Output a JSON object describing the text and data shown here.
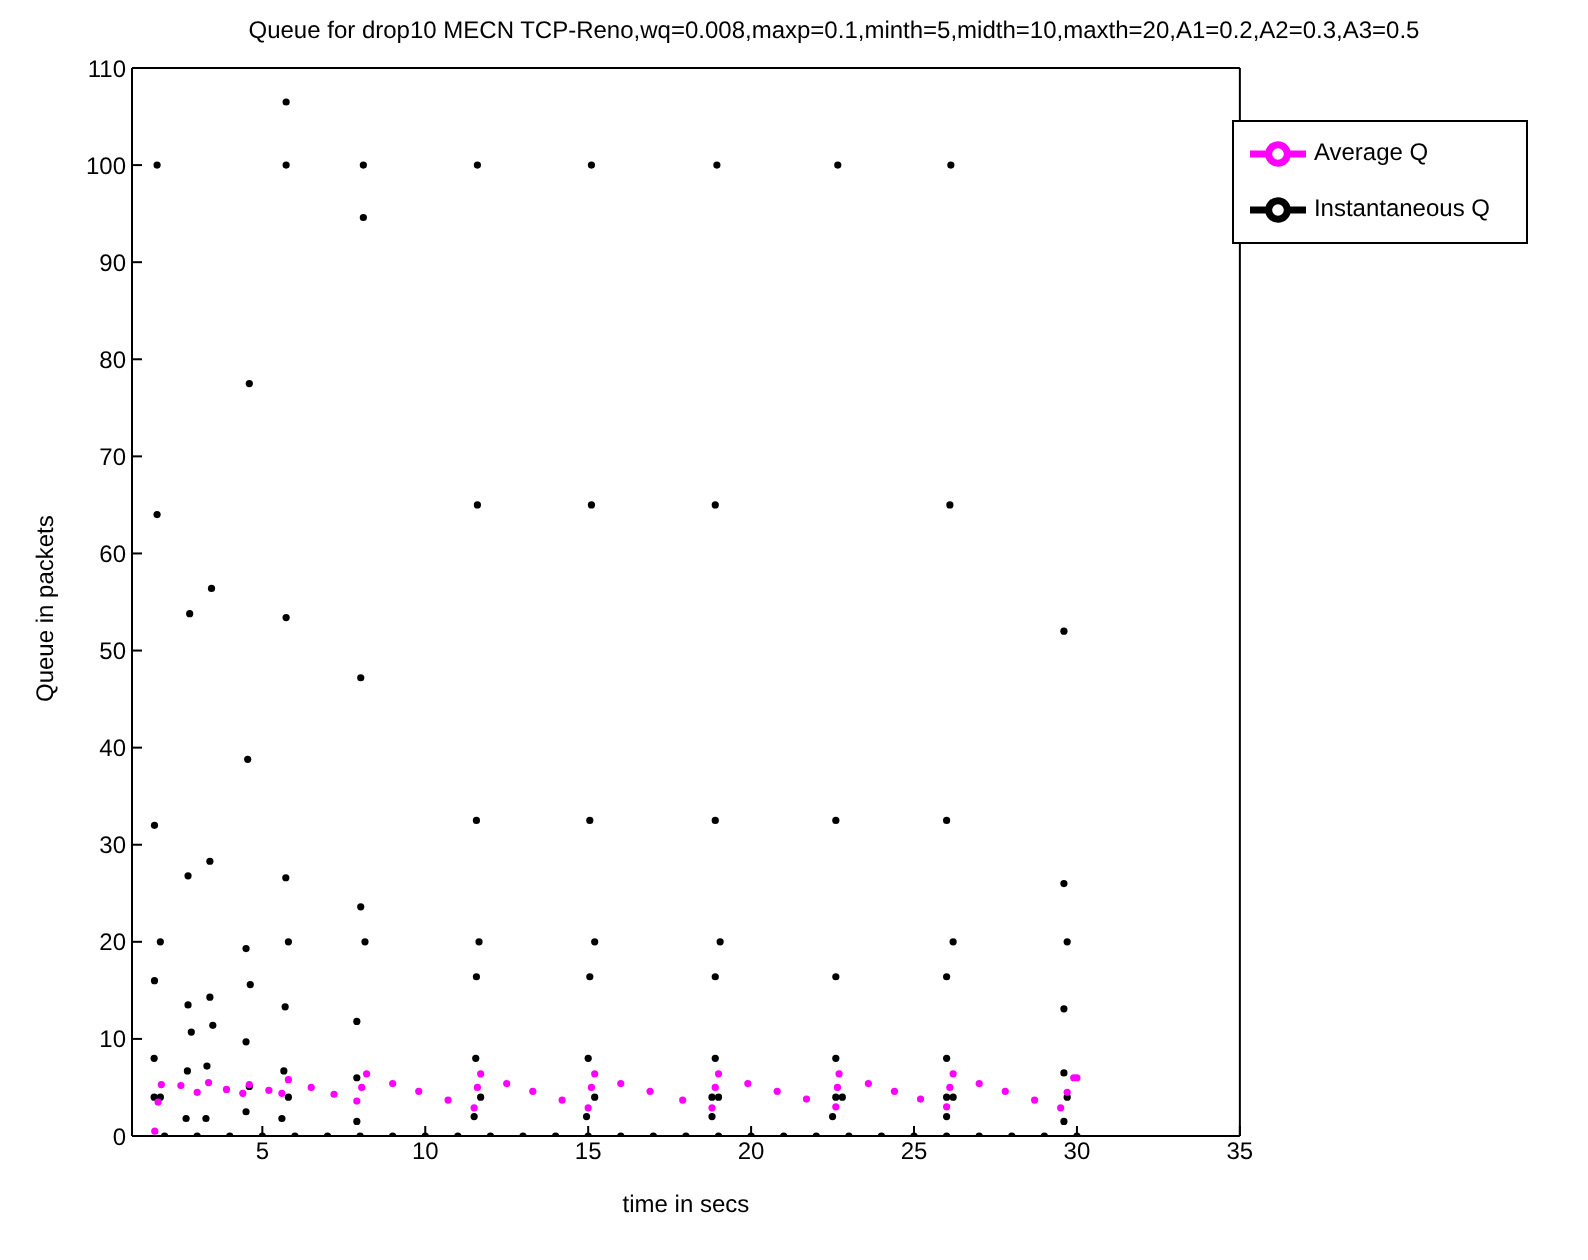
{
  "chart_data": {
    "type": "scatter",
    "title": "Queue for drop10 MECN TCP-Reno,wq=0.008,maxp=0.1,minth=5,midth=10,maxth=20,A1=0.2,A2=0.3,A3=0.5",
    "xlabel": "time in secs",
    "ylabel": "Queue in packets",
    "xlim": [
      1,
      35
    ],
    "xticks": [
      5,
      10,
      15,
      20,
      25,
      30,
      35
    ],
    "ylim": [
      0,
      110
    ],
    "yticks": [
      0,
      10,
      20,
      30,
      40,
      50,
      60,
      70,
      80,
      90,
      100,
      110
    ],
    "grid": false,
    "legend": "top right",
    "marker": "circle",
    "series": [
      {
        "name": "Instantaneous Q",
        "color": "#000000",
        "x": [
          1.77,
          5.73,
          5.73,
          8.1,
          8.1,
          11.6,
          15.1,
          18.95,
          4.6,
          1.77,
          11.6,
          15.1,
          18.9,
          2.77,
          3.44,
          5.73,
          22.66,
          26.13,
          26.1,
          29.6,
          18.9,
          22.6,
          26.0,
          29.6,
          19.05,
          26.2,
          29.7,
          18.9,
          22.6,
          26.0,
          29.6,
          18.9,
          22.6,
          26.0,
          29.6,
          18.8,
          19.0,
          22.6,
          22.8,
          26.0,
          26.2,
          29.7,
          18.8,
          22.5,
          26.0,
          29.6,
          1.69,
          1.69,
          1.68,
          1.68,
          1.87,
          1.87,
          2.72,
          2.72,
          2.82,
          2.7,
          3.3,
          3.39,
          3.39,
          3.48,
          2.66,
          3.27,
          4.55,
          4.5,
          4.63,
          4.5,
          4.6,
          4.5,
          5.72,
          5.8,
          5.7,
          5.66,
          5.8,
          5.6,
          8.02,
          8.02,
          8.15,
          7.9,
          7.9,
          7.9,
          11.57,
          11.65,
          11.57,
          11.55,
          11.7,
          11.5,
          15.05,
          15.2,
          15.05,
          15.0,
          15.2,
          14.95,
          2,
          3,
          4,
          5,
          6,
          7,
          8,
          9,
          10,
          11,
          12,
          13,
          14,
          15,
          16,
          17,
          18,
          19,
          20,
          21,
          22,
          23,
          24,
          25,
          26,
          27,
          28,
          29,
          30
        ],
        "values": [
          100,
          106.5,
          100,
          100,
          94.6,
          100,
          100,
          100,
          77.5,
          64,
          65,
          65,
          65,
          53.8,
          56.4,
          53.4,
          100,
          100,
          65,
          52,
          32.5,
          32.5,
          32.5,
          26,
          20,
          20,
          20,
          16.4,
          16.4,
          16.4,
          13.1,
          8,
          8,
          8,
          6.5,
          4,
          4,
          4,
          4,
          4,
          4,
          4,
          2,
          2,
          2,
          1.5,
          32,
          16,
          8,
          4,
          4,
          20,
          26.8,
          13.5,
          10.7,
          6.7,
          7.2,
          14.3,
          28.3,
          11.4,
          1.8,
          1.8,
          38.8,
          19.3,
          15.6,
          9.7,
          5.1,
          2.5,
          26.6,
          20,
          13.3,
          6.7,
          4,
          1.8,
          47.2,
          23.6,
          20,
          11.8,
          6,
          1.5,
          32.5,
          20,
          16.4,
          8,
          4,
          2,
          32.5,
          20,
          16.4,
          8,
          4,
          2,
          0,
          0,
          0,
          0,
          0,
          0,
          0,
          0,
          0,
          0,
          0,
          0,
          0,
          0,
          0,
          0,
          0,
          0,
          0,
          0,
          0,
          0,
          0,
          0,
          0,
          0,
          0,
          0,
          0
        ]
      },
      {
        "name": "Average Q",
        "color": "#ff00ff",
        "x": [
          1.7,
          1.8,
          1.9,
          2.5,
          3.0,
          3.35,
          3.9,
          4.4,
          4.6,
          5.2,
          5.6,
          5.8,
          6.5,
          7.2,
          7.9,
          8.05,
          8.2,
          9.0,
          9.8,
          10.7,
          11.5,
          11.6,
          11.7,
          12.5,
          13.3,
          14.2,
          15.0,
          15.1,
          15.2,
          16.0,
          16.9,
          17.9,
          18.8,
          18.9,
          19.0,
          19.9,
          20.8,
          21.7,
          22.6,
          22.65,
          22.7,
          23.6,
          24.4,
          25.2,
          26.0,
          26.1,
          26.2,
          27.0,
          27.8,
          28.7,
          29.5,
          29.7,
          29.9,
          30.0
        ],
        "values": [
          0.5,
          3.5,
          5.3,
          5.2,
          4.5,
          5.5,
          4.8,
          4.4,
          5.3,
          4.7,
          4.4,
          5.8,
          5,
          4.3,
          3.6,
          5,
          6.4,
          5.4,
          4.6,
          3.7,
          2.9,
          5,
          6.4,
          5.4,
          4.6,
          3.7,
          2.9,
          5,
          6.4,
          5.4,
          4.6,
          3.7,
          2.9,
          5,
          6.4,
          5.4,
          4.6,
          3.8,
          3.0,
          5,
          6.4,
          5.4,
          4.6,
          3.8,
          3.0,
          5,
          6.4,
          5.4,
          4.6,
          3.7,
          2.9,
          4.5,
          6.0,
          6.0
        ]
      }
    ]
  }
}
